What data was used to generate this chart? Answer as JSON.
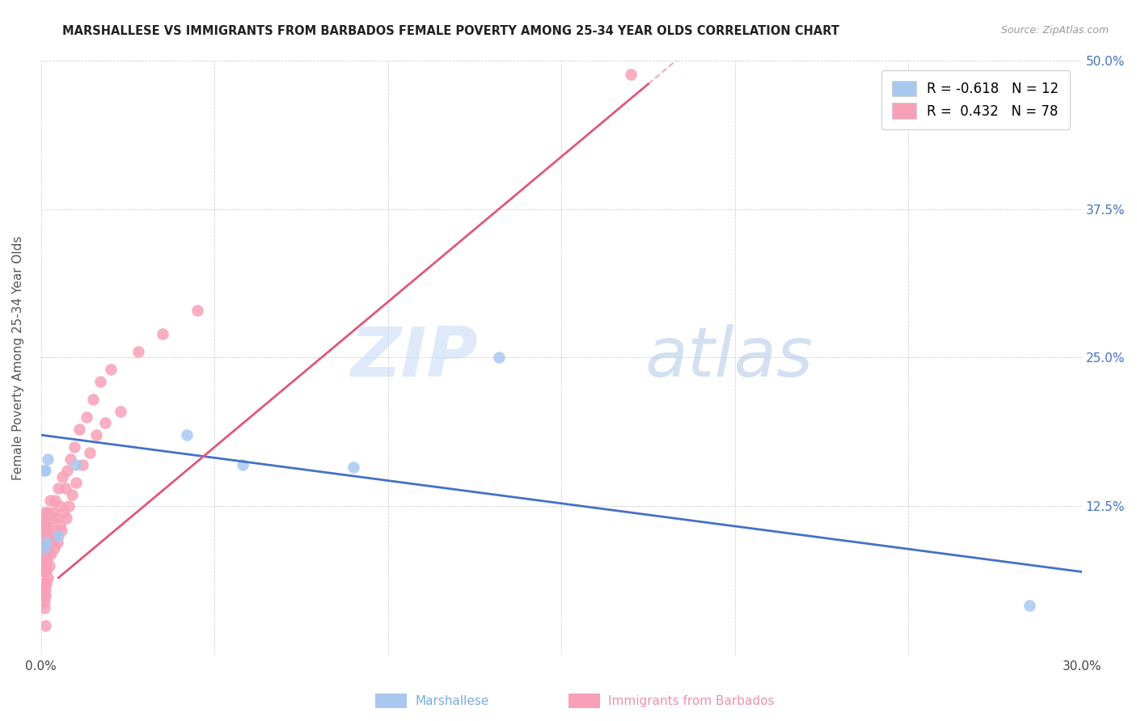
{
  "title": "MARSHALLESE VS IMMIGRANTS FROM BARBADOS FEMALE POVERTY AMONG 25-34 YEAR OLDS CORRELATION CHART",
  "source": "Source: ZipAtlas.com",
  "ylabel": "Female Poverty Among 25-34 Year Olds",
  "xlabel_marshallese": "Marshallese",
  "xlabel_barbados": "Immigrants from Barbados",
  "xlim": [
    0.0,
    0.3
  ],
  "ylim": [
    0.0,
    0.5
  ],
  "xtick_positions": [
    0.0,
    0.05,
    0.1,
    0.15,
    0.2,
    0.25,
    0.3
  ],
  "xticklabels": [
    "0.0%",
    "",
    "",
    "",
    "",
    "",
    "30.0%"
  ],
  "ytick_positions": [
    0.0,
    0.125,
    0.25,
    0.375,
    0.5
  ],
  "ytick_labels_right": [
    "",
    "12.5%",
    "25.0%",
    "37.5%",
    "50.0%"
  ],
  "marshallese_color": "#a8c8f0",
  "barbados_color": "#f8a0b8",
  "marshallese_line_color": "#4472c4",
  "barbados_line_color": "#e05878",
  "marshallese_R": -0.618,
  "marshallese_N": 12,
  "barbados_R": 0.432,
  "barbados_N": 78,
  "watermark_zip": "ZIP",
  "watermark_atlas": "atlas",
  "marshallese_x": [
    0.0008,
    0.001,
    0.0012,
    0.0015,
    0.002,
    0.005,
    0.01,
    0.042,
    0.058,
    0.09,
    0.132,
    0.285
  ],
  "marshallese_y": [
    0.155,
    0.09,
    0.155,
    0.095,
    0.165,
    0.1,
    0.16,
    0.185,
    0.16,
    0.158,
    0.25,
    0.042
  ],
  "barbados_x": [
    0.0004,
    0.0005,
    0.0005,
    0.0006,
    0.0006,
    0.0007,
    0.0007,
    0.0007,
    0.0008,
    0.0008,
    0.0008,
    0.0009,
    0.0009,
    0.0009,
    0.001,
    0.001,
    0.001,
    0.001,
    0.0011,
    0.0011,
    0.0011,
    0.0012,
    0.0012,
    0.0012,
    0.0013,
    0.0013,
    0.0014,
    0.0014,
    0.0015,
    0.0015,
    0.0016,
    0.0017,
    0.0018,
    0.0019,
    0.002,
    0.0021,
    0.0022,
    0.0023,
    0.0025,
    0.0027,
    0.0028,
    0.003,
    0.0032,
    0.0033,
    0.0035,
    0.0037,
    0.004,
    0.0042,
    0.0045,
    0.0048,
    0.005,
    0.0053,
    0.0055,
    0.0058,
    0.006,
    0.0065,
    0.007,
    0.0072,
    0.0075,
    0.008,
    0.0085,
    0.009,
    0.0095,
    0.01,
    0.011,
    0.012,
    0.013,
    0.014,
    0.015,
    0.016,
    0.017,
    0.0185,
    0.02,
    0.023,
    0.028,
    0.035,
    0.045,
    0.17
  ],
  "barbados_y": [
    0.095,
    0.085,
    0.06,
    0.11,
    0.075,
    0.1,
    0.07,
    0.05,
    0.115,
    0.09,
    0.06,
    0.105,
    0.08,
    0.045,
    0.12,
    0.095,
    0.07,
    0.04,
    0.115,
    0.085,
    0.05,
    0.11,
    0.075,
    0.025,
    0.1,
    0.055,
    0.105,
    0.06,
    0.115,
    0.07,
    0.095,
    0.08,
    0.11,
    0.065,
    0.12,
    0.085,
    0.095,
    0.075,
    0.13,
    0.1,
    0.085,
    0.115,
    0.095,
    0.12,
    0.1,
    0.09,
    0.13,
    0.105,
    0.115,
    0.095,
    0.14,
    0.11,
    0.125,
    0.105,
    0.15,
    0.12,
    0.14,
    0.115,
    0.155,
    0.125,
    0.165,
    0.135,
    0.175,
    0.145,
    0.19,
    0.16,
    0.2,
    0.17,
    0.215,
    0.185,
    0.23,
    0.195,
    0.24,
    0.205,
    0.255,
    0.27,
    0.29,
    0.488
  ]
}
